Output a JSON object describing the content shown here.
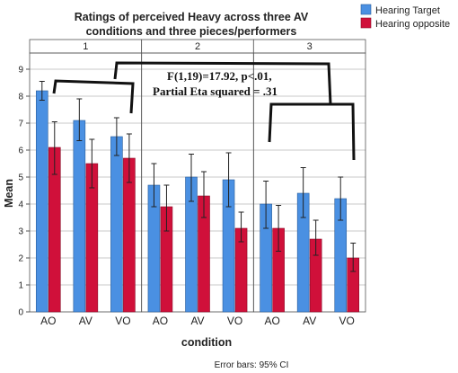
{
  "chart_data": {
    "type": "bar",
    "title": "Ratings of perceived Heavy across three AV conditions and three pieces/performers",
    "title_lines": [
      "Ratings of perceived Heavy across three AV",
      "conditions and three pieces/performers"
    ],
    "xlabel": "condition",
    "ylabel": "Mean",
    "ylim": [
      0,
      9.6
    ],
    "yticks": [
      0,
      1,
      2,
      3,
      4,
      5,
      6,
      7,
      8,
      9
    ],
    "grid": true,
    "legend_position": "top-right",
    "footnote": "Error bars: 95% CI",
    "categories": [
      "AO",
      "AV",
      "VO"
    ],
    "panels": [
      {
        "label": "1",
        "series": [
          {
            "name": "Hearing Target",
            "values": [
              8.2,
              7.1,
              6.5
            ],
            "ci_low": [
              7.85,
              6.35,
              5.8
            ],
            "ci_high": [
              8.55,
              7.9,
              7.2
            ]
          },
          {
            "name": "Hearing opposite",
            "values": [
              6.1,
              5.5,
              5.7
            ],
            "ci_low": [
              5.1,
              4.6,
              4.8
            ],
            "ci_high": [
              7.05,
              6.4,
              6.6
            ]
          }
        ]
      },
      {
        "label": "2",
        "series": [
          {
            "name": "Hearing Target",
            "values": [
              4.7,
              5.0,
              4.9
            ],
            "ci_low": [
              3.9,
              4.1,
              3.9
            ],
            "ci_high": [
              5.5,
              5.85,
              5.9
            ]
          },
          {
            "name": "Hearing opposite",
            "values": [
              3.9,
              4.3,
              3.1
            ],
            "ci_low": [
              3.0,
              3.5,
              2.6
            ],
            "ci_high": [
              4.7,
              5.2,
              3.7
            ]
          }
        ]
      },
      {
        "label": "3",
        "series": [
          {
            "name": "Hearing Target",
            "values": [
              4.0,
              4.4,
              4.2
            ],
            "ci_low": [
              3.1,
              3.5,
              3.4
            ],
            "ci_high": [
              4.85,
              5.35,
              5.0
            ]
          },
          {
            "name": "Hearing opposite",
            "values": [
              3.1,
              2.7,
              2.0
            ],
            "ci_low": [
              2.25,
              2.1,
              1.5
            ],
            "ci_high": [
              3.95,
              3.4,
              2.55
            ]
          }
        ]
      }
    ],
    "annotations": [
      "F(1,19)=17.92, p<.01,",
      "Partial Eta squared = .31"
    ],
    "colors": {
      "Hearing Target": "#4a90e2",
      "Hearing opposite": "#d0103a"
    }
  }
}
